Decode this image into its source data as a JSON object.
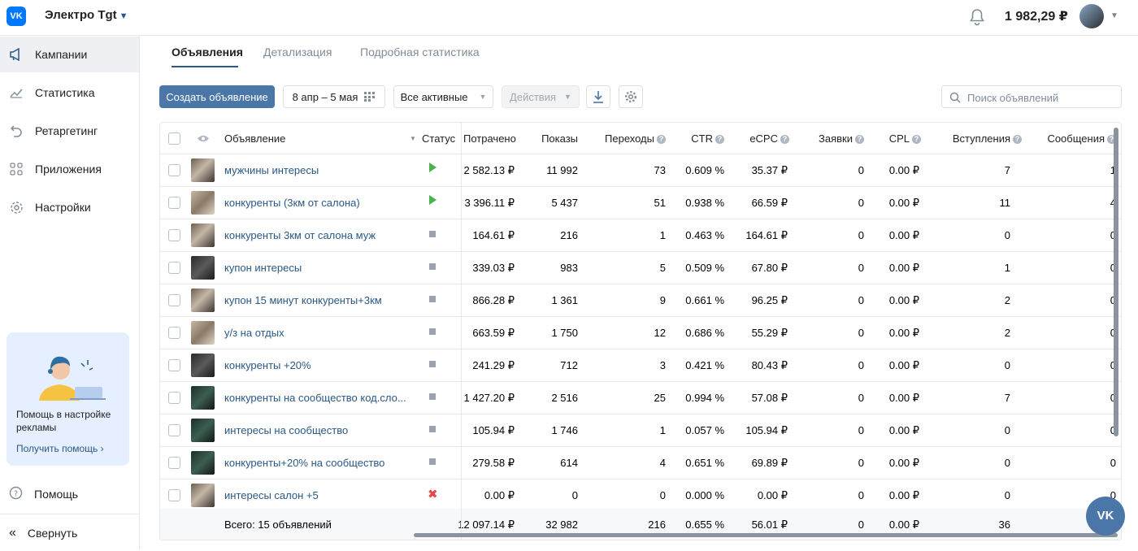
{
  "header": {
    "logo": "VK",
    "account_name": "Электро Tgt",
    "balance": "1 982,29 ₽"
  },
  "sidebar": {
    "items": [
      {
        "label": "Кампании",
        "icon": "megaphone-icon",
        "active": true
      },
      {
        "label": "Статистика",
        "icon": "chart-icon",
        "active": false
      },
      {
        "label": "Ретаргетинг",
        "icon": "retarget-icon",
        "active": false
      },
      {
        "label": "Приложения",
        "icon": "apps-icon",
        "active": false
      },
      {
        "label": "Настройки",
        "icon": "gear-icon",
        "active": false
      }
    ],
    "help_box": {
      "text": "Помощь в настройке рекламы",
      "link": "Получить помощь"
    },
    "help_label": "Помощь",
    "collapse_label": "Свернуть"
  },
  "tabs": [
    {
      "label": "Объявления",
      "active": true
    },
    {
      "label": "Детализация",
      "active": false
    },
    {
      "label": "Подробная статистика",
      "active": false
    }
  ],
  "toolbar": {
    "create_label": "Создать объявление",
    "date_range": "8 апр – 5 мая",
    "filter_label": "Все активные",
    "actions_label": "Действия",
    "search_placeholder": "Поиск объявлений"
  },
  "table": {
    "columns": [
      "Объявление",
      "Статус",
      "Потрачено",
      "Показы",
      "Переходы",
      "CTR",
      "eCPC",
      "Заявки",
      "CPL",
      "Вступления",
      "Сообщения"
    ],
    "rows": [
      {
        "name": "мужчины интересы",
        "status": "active",
        "spent": "2 582.13 ₽",
        "shows": "11 992",
        "clicks": "73",
        "ctr": "0.609 %",
        "ecpc": "35.37 ₽",
        "leads": "0",
        "cpl": "0.00 ₽",
        "joins": "7",
        "msgs": "1",
        "thumb": "a"
      },
      {
        "name": "конкуренты (3км от салона)",
        "status": "active",
        "spent": "3 396.11 ₽",
        "shows": "5 437",
        "clicks": "51",
        "ctr": "0.938 %",
        "ecpc": "66.59 ₽",
        "leads": "0",
        "cpl": "0.00 ₽",
        "joins": "11",
        "msgs": "4",
        "thumb": "b"
      },
      {
        "name": "конкуренты 3км от салона муж",
        "status": "stopped",
        "spent": "164.61 ₽",
        "shows": "216",
        "clicks": "1",
        "ctr": "0.463 %",
        "ecpc": "164.61 ₽",
        "leads": "0",
        "cpl": "0.00 ₽",
        "joins": "0",
        "msgs": "0",
        "thumb": "a"
      },
      {
        "name": "купон интересы",
        "status": "stopped",
        "spent": "339.03 ₽",
        "shows": "983",
        "clicks": "5",
        "ctr": "0.509 %",
        "ecpc": "67.80 ₽",
        "leads": "0",
        "cpl": "0.00 ₽",
        "joins": "1",
        "msgs": "0",
        "thumb": "d"
      },
      {
        "name": "купон 15 минут конкуренты+3км",
        "status": "stopped",
        "spent": "866.28 ₽",
        "shows": "1 361",
        "clicks": "9",
        "ctr": "0.661 %",
        "ecpc": "96.25 ₽",
        "leads": "0",
        "cpl": "0.00 ₽",
        "joins": "2",
        "msgs": "0",
        "thumb": "a"
      },
      {
        "name": "у/з на отдых",
        "status": "stopped",
        "spent": "663.59 ₽",
        "shows": "1 750",
        "clicks": "12",
        "ctr": "0.686 %",
        "ecpc": "55.29 ₽",
        "leads": "0",
        "cpl": "0.00 ₽",
        "joins": "2",
        "msgs": "0",
        "thumb": "b"
      },
      {
        "name": "конкуренты +20%",
        "status": "stopped",
        "spent": "241.29 ₽",
        "shows": "712",
        "clicks": "3",
        "ctr": "0.421 %",
        "ecpc": "80.43 ₽",
        "leads": "0",
        "cpl": "0.00 ₽",
        "joins": "0",
        "msgs": "0",
        "thumb": "d"
      },
      {
        "name": "конкуренты на сообщество код.сло...",
        "status": "stopped",
        "spent": "1 427.20 ₽",
        "shows": "2 516",
        "clicks": "25",
        "ctr": "0.994 %",
        "ecpc": "57.08 ₽",
        "leads": "0",
        "cpl": "0.00 ₽",
        "joins": "7",
        "msgs": "0",
        "thumb": "c"
      },
      {
        "name": "интересы на сообщество",
        "status": "stopped",
        "spent": "105.94 ₽",
        "shows": "1 746",
        "clicks": "1",
        "ctr": "0.057 %",
        "ecpc": "105.94 ₽",
        "leads": "0",
        "cpl": "0.00 ₽",
        "joins": "0",
        "msgs": "0",
        "thumb": "c"
      },
      {
        "name": "конкуренты+20% на сообщество",
        "status": "stopped",
        "spent": "279.58 ₽",
        "shows": "614",
        "clicks": "4",
        "ctr": "0.651 %",
        "ecpc": "69.89 ₽",
        "leads": "0",
        "cpl": "0.00 ₽",
        "joins": "0",
        "msgs": "0",
        "thumb": "c"
      },
      {
        "name": "интересы салон +5",
        "status": "rejected",
        "spent": "0.00 ₽",
        "shows": "0",
        "clicks": "0",
        "ctr": "0.000 %",
        "ecpc": "0.00 ₽",
        "leads": "0",
        "cpl": "0.00 ₽",
        "joins": "0",
        "msgs": "0",
        "thumb": "a"
      }
    ],
    "total": {
      "label": "Всего: 15 объявлений",
      "spent": "12 097.14 ₽",
      "shows": "32 982",
      "clicks": "216",
      "ctr": "0.655 %",
      "ecpc": "56.01 ₽",
      "leads": "0",
      "cpl": "0.00 ₽",
      "joins": "36"
    }
  },
  "colors": {
    "accent": "#4a76a8",
    "link": "#2a5885",
    "active_status": "#4bb34b",
    "rejected_status": "#e64646"
  }
}
